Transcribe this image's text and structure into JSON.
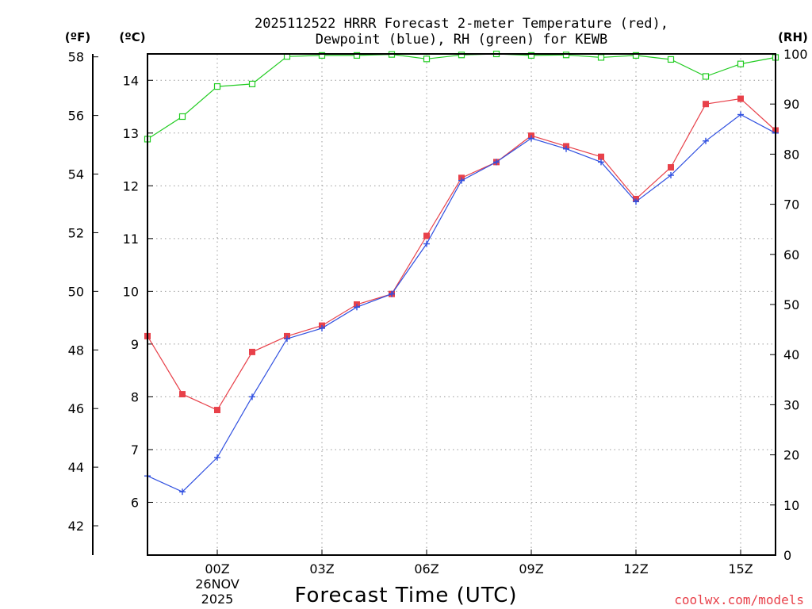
{
  "chart_data": {
    "type": "line",
    "title_line1": "2025112522 HRRR Forecast 2-meter Temperature (red),",
    "title_line2": "Dewpoint (blue), RH (green) for KEWB",
    "xlabel": "Forecast Time (UTC)",
    "credit": "coolwx.com/models",
    "unit_f": "(ºF)",
    "unit_c": "(ºC)",
    "unit_rh": "(RH)",
    "x_hours": [
      22,
      23,
      24,
      25,
      26,
      27,
      28,
      29,
      30,
      31,
      32,
      33,
      34,
      35,
      36,
      37,
      38,
      39,
      40
    ],
    "x_ticks": [
      {
        "hour": 24,
        "label": "00Z",
        "date_line1": "26NOV",
        "date_line2": "2025"
      },
      {
        "hour": 27,
        "label": "03Z"
      },
      {
        "hour": 30,
        "label": "06Z"
      },
      {
        "hour": 33,
        "label": "09Z"
      },
      {
        "hour": 36,
        "label": "12Z"
      },
      {
        "hour": 39,
        "label": "15Z"
      }
    ],
    "celsius_axis": {
      "range": [
        5.0,
        14.5
      ],
      "ticks": [
        "6",
        "7",
        "8",
        "9",
        "10",
        "11",
        "12",
        "13",
        "14"
      ]
    },
    "fahrenheit_axis": {
      "ticks": [
        "42",
        "44",
        "46",
        "48",
        "50",
        "52",
        "54",
        "56",
        "58"
      ]
    },
    "rh_axis": {
      "range": [
        0,
        100
      ],
      "ticks": [
        "0",
        "10",
        "20",
        "30",
        "40",
        "50",
        "60",
        "70",
        "80",
        "90",
        "100"
      ]
    },
    "series": [
      {
        "name": "Temperature",
        "unit": "C",
        "color": "#e8414a",
        "marker": "filled-square",
        "values": [
          9.15,
          8.05,
          7.75,
          8.85,
          9.15,
          9.35,
          9.75,
          9.95,
          11.05,
          12.15,
          12.45,
          12.95,
          12.75,
          12.55,
          11.75,
          12.35,
          13.55,
          13.65,
          13.05
        ]
      },
      {
        "name": "Dewpoint",
        "unit": "C",
        "color": "#3050e0",
        "marker": "plus",
        "values": [
          6.5,
          6.2,
          6.85,
          8.0,
          9.1,
          9.3,
          9.7,
          9.95,
          10.9,
          12.1,
          12.45,
          12.9,
          12.7,
          12.45,
          11.7,
          12.2,
          12.85,
          13.35,
          13.0
        ]
      },
      {
        "name": "RH",
        "unit": "%",
        "color": "#22cc22",
        "marker": "open-square",
        "values": [
          83,
          87.5,
          93.5,
          94,
          99.5,
          99.7,
          99.7,
          99.9,
          99,
          99.8,
          100,
          99.7,
          99.8,
          99.3,
          99.7,
          98.9,
          95.5,
          98,
          99.3
        ]
      }
    ]
  }
}
